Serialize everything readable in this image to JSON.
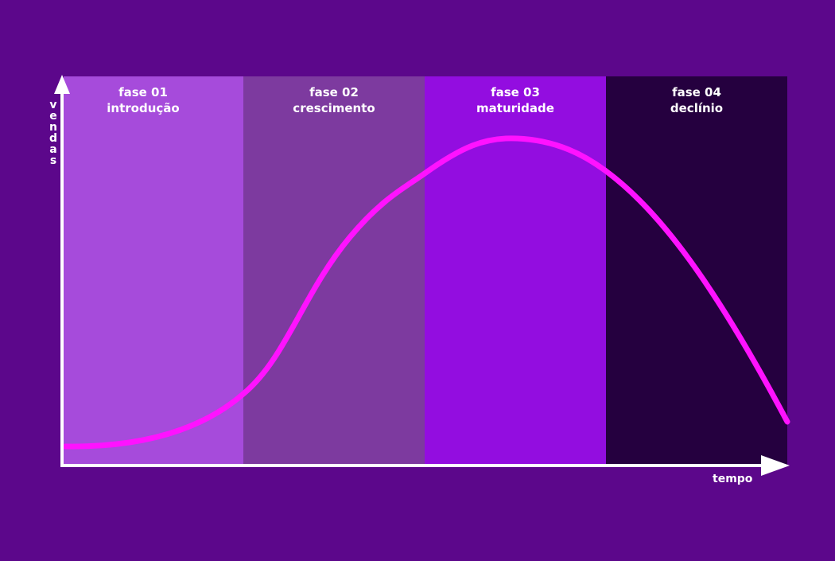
{
  "axes": {
    "y_label": "vendas",
    "x_label": "tempo"
  },
  "phases": [
    {
      "number": "fase 01",
      "name": "introdução"
    },
    {
      "number": "fase 02",
      "name": "crescimento"
    },
    {
      "number": "fase 03",
      "name": "maturidade"
    },
    {
      "number": "fase 04",
      "name": "declínio"
    }
  ]
}
